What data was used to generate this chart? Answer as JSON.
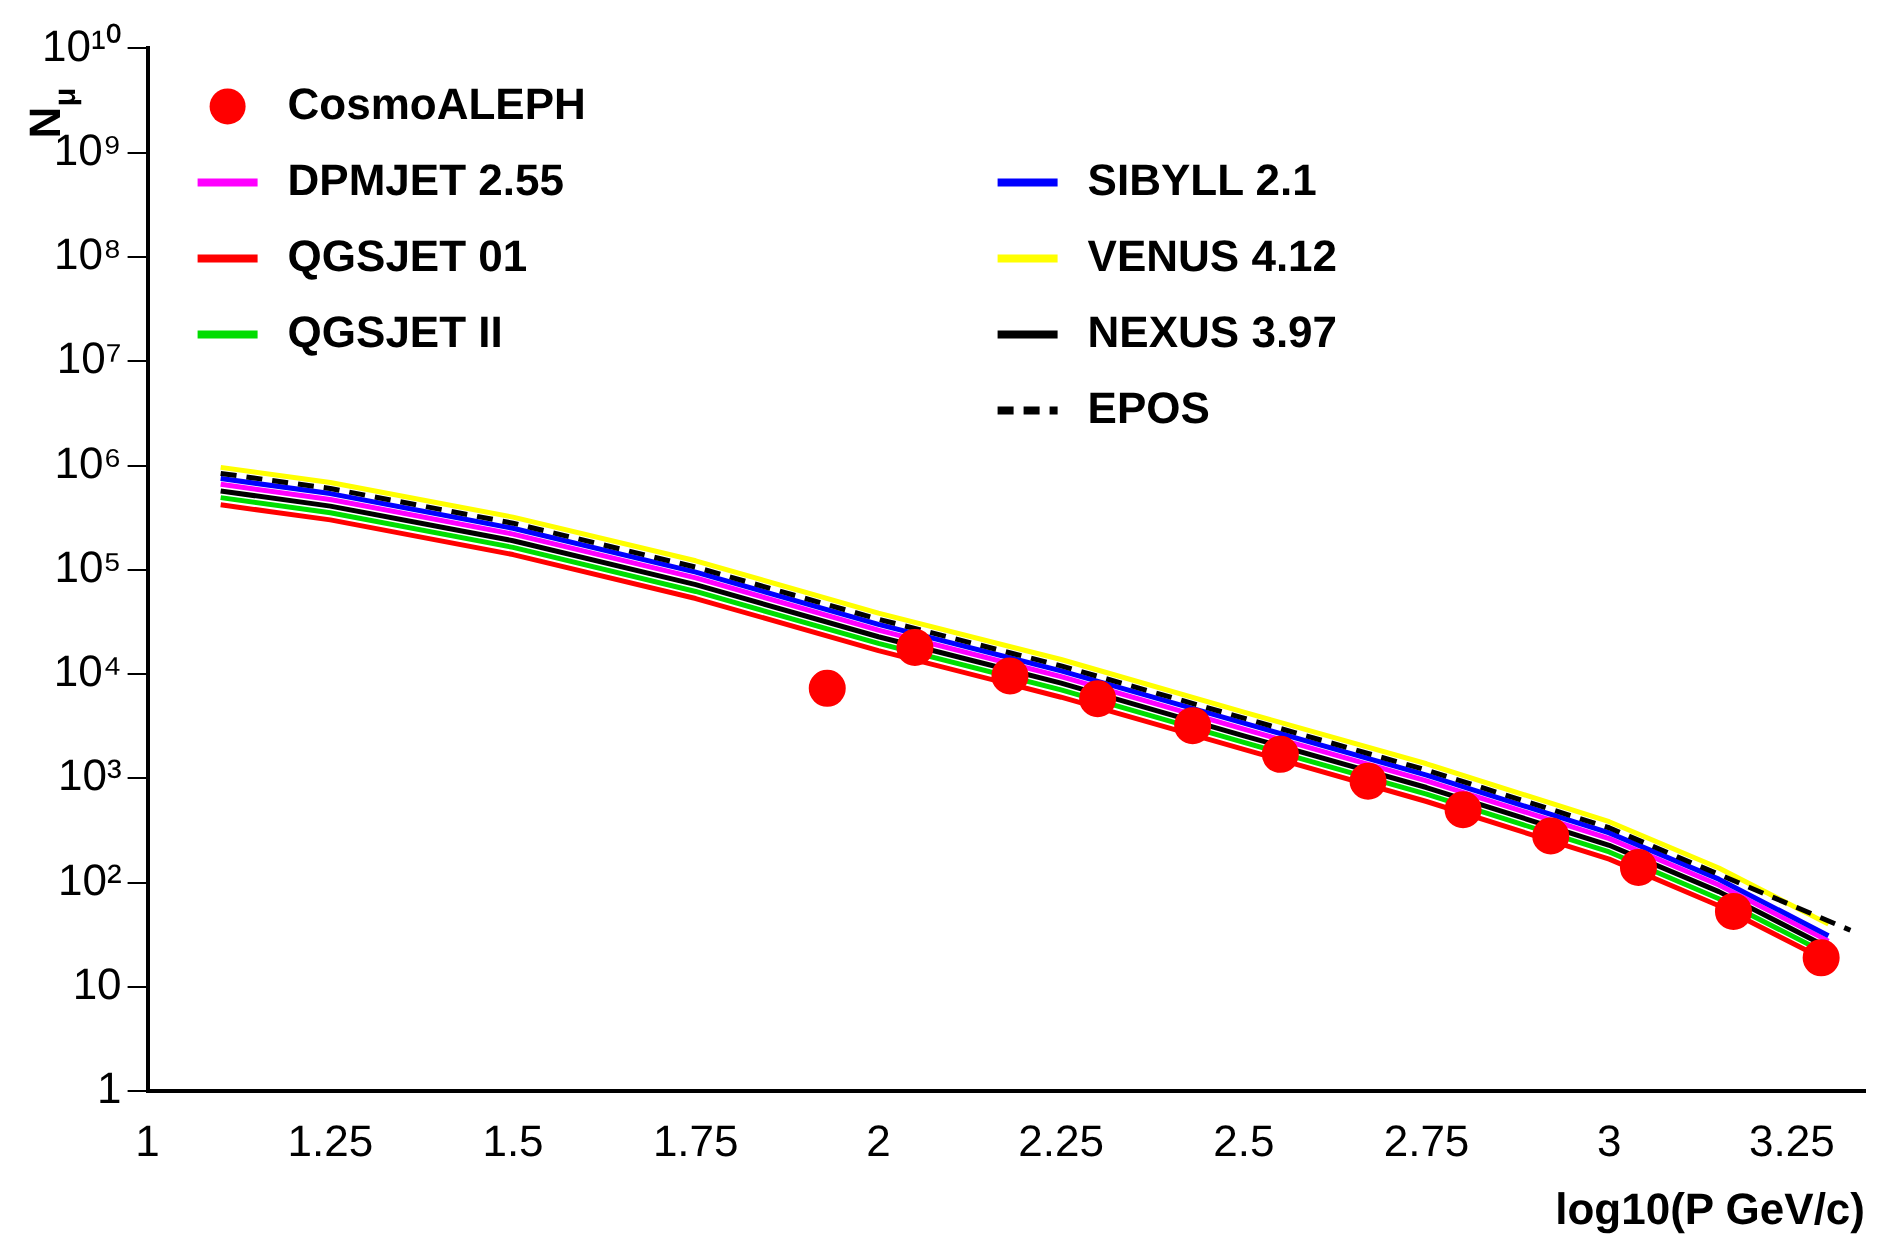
{
  "chart_data": {
    "type": "line",
    "xlabel": "log10(P GeV/c)",
    "ylabel": "N$_{μ}$",
    "log": "y",
    "legend": "top left",
    "marker": "none",
    "grid": false,
    "xlim": [
      1,
      3.35
    ],
    "xticks": [
      1,
      1.25,
      1.5,
      1.75,
      2,
      2.25,
      2.5,
      2.75,
      3,
      3.25
    ],
    "ylim": [
      1,
      10000000000
    ],
    "yticks": [
      {
        "value": 1,
        "label": "1"
      },
      {
        "value": 10,
        "label": "10"
      },
      {
        "value": 100,
        "label": "10²"
      },
      {
        "value": 1000,
        "label": "10³"
      },
      {
        "value": 10000,
        "label": "10⁴"
      },
      {
        "value": 100000,
        "label": "10⁵"
      },
      {
        "value": 1000000,
        "label": "10⁶"
      },
      {
        "value": 10000000,
        "label": "10⁷"
      },
      {
        "value": 100000000,
        "label": "10⁸"
      },
      {
        "value": 1000000000,
        "label": "10⁹"
      },
      {
        "value": 10000000000,
        "label": "10¹⁰"
      }
    ],
    "series": [
      {
        "name": "CosmoALEPH",
        "type": "scatter",
        "marker": "circle",
        "color": "#ff0000",
        "x": [
          1.93,
          2.05,
          2.18,
          2.3,
          2.43,
          2.55,
          2.67,
          2.8,
          2.92,
          3.04,
          3.17,
          3.29
        ],
        "values": [
          7300,
          18000,
          9600,
          5800,
          3200,
          1700,
          940,
          500,
          280,
          140,
          53,
          19
        ]
      },
      {
        "name": "DPMJET 2.55",
        "color": "#ff00ff",
        "x": [
          1.1,
          1.25,
          1.5,
          1.75,
          2,
          2.25,
          2.5,
          2.75,
          3,
          3.15,
          3.3
        ],
        "values": [
          660000,
          473000,
          220000,
          83600,
          26400,
          9460,
          2970,
          946,
          264,
          95,
          27.5
        ]
      },
      {
        "name": "QGSJET 01",
        "color": "#ff0000",
        "x": [
          1.1,
          1.25,
          1.5,
          1.75,
          2,
          2.25,
          2.5,
          2.75,
          3,
          3.15,
          3.3
        ],
        "values": [
          420000,
          301000,
          140000,
          53000,
          16800,
          6000,
          1900,
          600,
          168,
          60,
          17.5
        ]
      },
      {
        "name": "QGSJET II",
        "color": "#00dd00",
        "x": [
          1.1,
          1.25,
          1.5,
          1.75,
          2,
          2.25,
          2.5,
          2.75,
          3,
          3.15,
          3.3
        ],
        "values": [
          492000,
          353000,
          164000,
          62000,
          19700,
          7050,
          2210,
          705,
          197,
          70,
          20.5
        ]
      },
      {
        "name": "SIBYLL 2.1",
        "color": "#0000ff",
        "x": [
          1.1,
          1.25,
          1.5,
          1.75,
          2,
          2.25,
          2.5,
          2.75,
          3,
          3.15,
          3.3
        ],
        "values": [
          750000,
          538000,
          250000,
          95000,
          30000,
          10750,
          3380,
          1075,
          300,
          108,
          31
        ]
      },
      {
        "name": "VENUS 4.12",
        "color": "#ffff00",
        "x": [
          1.1,
          1.25,
          1.5,
          1.75,
          2,
          2.25,
          2.5,
          2.75,
          3,
          3.15,
          3.3
        ],
        "values": [
          960000,
          688000,
          320000,
          122000,
          38400,
          13800,
          4320,
          1380,
          384,
          138,
          40
        ]
      },
      {
        "name": "NEXUS 3.97",
        "color": "#000000",
        "x": [
          1.1,
          1.25,
          1.5,
          1.75,
          2,
          2.25,
          2.5,
          2.75,
          3,
          3.15,
          3.3
        ],
        "values": [
          570000,
          408000,
          190000,
          72000,
          22800,
          8200,
          2560,
          817,
          228,
          82,
          23.8
        ]
      },
      {
        "name": "EPOS",
        "color": "#000000",
        "line_style": "dashed",
        "x": [
          1.1,
          1.25,
          1.5,
          1.75,
          2,
          2.25,
          2.5,
          2.75,
          3,
          3.15,
          3.33
        ],
        "values": [
          840000,
          602000,
          280000,
          106000,
          33600,
          12000,
          3780,
          1200,
          336,
          120,
          35
        ]
      }
    ]
  }
}
